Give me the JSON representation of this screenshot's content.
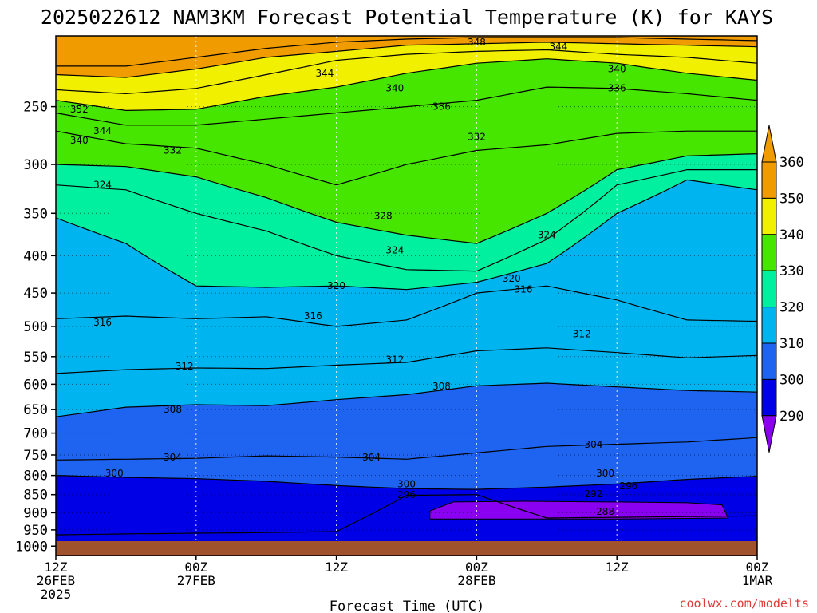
{
  "title": "2025022612 NAM3KM Forecast Potential Temperature (K) for KAYS",
  "credit": "coolwx.com/modelts",
  "chart_data": {
    "type": "heatmap",
    "title": "2025022612 NAM3KM Forecast Potential Temperature (K) for KAYS",
    "xlabel": "Forecast Time (UTC)",
    "ylabel": "",
    "x_range_hours": [
      0,
      60
    ],
    "y_range_hpa": [
      1030,
      200
    ],
    "y_scale": "log-pressure (inverted)",
    "grid": true,
    "y_ticks": [
      250,
      300,
      350,
      400,
      450,
      500,
      550,
      600,
      650,
      700,
      750,
      800,
      850,
      900,
      950,
      1000
    ],
    "x_ticks": [
      {
        "hour": 0,
        "lines": [
          "12Z",
          "26FEB",
          "2025"
        ]
      },
      {
        "hour": 12,
        "lines": [
          "00Z",
          "27FEB"
        ]
      },
      {
        "hour": 24,
        "lines": [
          "12Z"
        ]
      },
      {
        "hour": 36,
        "lines": [
          "00Z",
          "28FEB"
        ]
      },
      {
        "hour": 48,
        "lines": [
          "12Z"
        ]
      },
      {
        "hour": 60,
        "lines": [
          "00Z",
          "1MAR"
        ]
      }
    ],
    "colorbar": {
      "levels": [
        290,
        300,
        310,
        320,
        330,
        340,
        350,
        360
      ],
      "colors": [
        "#8a00f0",
        "#0000e6",
        "#1f64f0",
        "#00b4f0",
        "#00f0a0",
        "#46e600",
        "#f0f000",
        "#f09b00"
      ],
      "extend": "both"
    },
    "series": [
      {
        "name": "296",
        "values": [
          [
            0,
            965
          ],
          [
            6,
            962
          ],
          [
            12,
            960
          ],
          [
            18,
            958
          ],
          [
            24,
            955
          ],
          [
            30,
            852
          ],
          [
            36,
            850
          ],
          [
            42,
            915
          ],
          [
            48,
            913
          ],
          [
            54,
            911
          ],
          [
            60,
            909
          ]
        ]
      },
      {
        "name": "300",
        "values": [
          [
            0,
            800
          ],
          [
            6,
            805
          ],
          [
            12,
            808
          ],
          [
            18,
            815
          ],
          [
            24,
            826
          ],
          [
            30,
            834
          ],
          [
            36,
            836
          ],
          [
            42,
            830
          ],
          [
            48,
            822
          ],
          [
            54,
            810
          ],
          [
            60,
            802
          ]
        ]
      },
      {
        "name": "304",
        "values": [
          [
            0,
            762
          ],
          [
            6,
            760
          ],
          [
            12,
            758
          ],
          [
            18,
            752
          ],
          [
            24,
            755
          ],
          [
            30,
            760
          ],
          [
            36,
            745
          ],
          [
            42,
            730
          ],
          [
            48,
            725
          ],
          [
            54,
            720
          ],
          [
            60,
            710
          ]
        ]
      },
      {
        "name": "308",
        "values": [
          [
            0,
            665
          ],
          [
            6,
            645
          ],
          [
            12,
            640
          ],
          [
            18,
            642
          ],
          [
            24,
            630
          ],
          [
            30,
            620
          ],
          [
            36,
            603
          ],
          [
            42,
            598
          ],
          [
            48,
            605
          ],
          [
            54,
            612
          ],
          [
            60,
            615
          ]
        ]
      },
      {
        "name": "312",
        "values": [
          [
            0,
            580
          ],
          [
            6,
            573
          ],
          [
            12,
            570
          ],
          [
            18,
            571
          ],
          [
            24,
            565
          ],
          [
            30,
            560
          ],
          [
            36,
            540
          ],
          [
            42,
            535
          ],
          [
            48,
            543
          ],
          [
            54,
            552
          ],
          [
            60,
            548
          ]
        ]
      },
      {
        "name": "316",
        "values": [
          [
            0,
            488
          ],
          [
            6,
            484
          ],
          [
            12,
            488
          ],
          [
            18,
            485
          ],
          [
            24,
            500
          ],
          [
            30,
            490
          ],
          [
            36,
            450
          ],
          [
            42,
            440
          ],
          [
            48,
            460
          ],
          [
            54,
            490
          ],
          [
            60,
            492
          ]
        ]
      },
      {
        "name": "320",
        "values": [
          [
            0,
            355
          ],
          [
            6,
            385
          ],
          [
            12,
            440
          ],
          [
            18,
            442
          ],
          [
            24,
            440
          ],
          [
            30,
            445
          ],
          [
            36,
            435
          ],
          [
            42,
            410
          ],
          [
            48,
            350
          ],
          [
            54,
            315
          ],
          [
            60,
            325
          ]
        ]
      },
      {
        "name": "324",
        "values": [
          [
            0,
            320
          ],
          [
            6,
            325
          ],
          [
            12,
            350
          ],
          [
            18,
            370
          ],
          [
            24,
            400
          ],
          [
            30,
            418
          ],
          [
            36,
            420
          ],
          [
            42,
            380
          ],
          [
            48,
            320
          ],
          [
            54,
            305
          ],
          [
            60,
            305
          ]
        ]
      },
      {
        "name": "328",
        "values": [
          [
            0,
            300
          ],
          [
            6,
            302
          ],
          [
            12,
            312
          ],
          [
            18,
            333
          ],
          [
            24,
            360
          ],
          [
            30,
            375
          ],
          [
            36,
            385
          ],
          [
            42,
            350
          ],
          [
            48,
            305
          ],
          [
            54,
            292
          ],
          [
            60,
            290
          ]
        ]
      },
      {
        "name": "332",
        "values": [
          [
            0,
            270
          ],
          [
            6,
            281
          ],
          [
            12,
            285
          ],
          [
            18,
            300
          ],
          [
            24,
            320
          ],
          [
            30,
            300
          ],
          [
            36,
            287
          ],
          [
            42,
            282
          ],
          [
            48,
            272
          ],
          [
            54,
            270
          ],
          [
            60,
            270
          ]
        ]
      },
      {
        "name": "336",
        "values": [
          [
            0,
            255
          ],
          [
            6,
            265
          ],
          [
            12,
            265
          ],
          [
            18,
            260
          ],
          [
            24,
            255
          ],
          [
            30,
            250
          ],
          [
            36,
            245
          ],
          [
            42,
            235
          ],
          [
            48,
            236
          ],
          [
            54,
            240
          ],
          [
            60,
            245
          ]
        ]
      },
      {
        "name": "340",
        "values": [
          [
            0,
            245
          ],
          [
            6,
            253
          ],
          [
            12,
            252
          ],
          [
            18,
            242
          ],
          [
            24,
            235
          ],
          [
            30,
            225
          ],
          [
            36,
            218
          ],
          [
            42,
            215
          ],
          [
            48,
            218
          ],
          [
            54,
            225
          ],
          [
            60,
            230
          ]
        ]
      },
      {
        "name": "344",
        "values": [
          [
            0,
            237
          ],
          [
            6,
            240
          ],
          [
            12,
            236
          ],
          [
            18,
            226
          ],
          [
            24,
            216
          ],
          [
            30,
            212
          ],
          [
            36,
            210
          ],
          [
            42,
            209
          ],
          [
            48,
            212
          ],
          [
            54,
            214
          ],
          [
            60,
            218
          ]
        ]
      },
      {
        "name": "348",
        "values": [
          [
            0,
            226
          ],
          [
            6,
            228
          ],
          [
            12,
            222
          ],
          [
            18,
            214
          ],
          [
            24,
            210
          ],
          [
            30,
            206
          ],
          [
            36,
            205
          ],
          [
            42,
            204
          ],
          [
            48,
            205
          ],
          [
            54,
            206
          ],
          [
            60,
            207
          ]
        ]
      },
      {
        "name": "352",
        "values": [
          [
            0,
            220
          ],
          [
            6,
            220
          ],
          [
            12,
            214
          ],
          [
            18,
            208
          ],
          [
            24,
            204
          ],
          [
            30,
            202
          ],
          [
            36,
            201
          ],
          [
            42,
            201
          ],
          [
            48,
            201
          ],
          [
            54,
            202
          ],
          [
            60,
            203
          ]
        ]
      }
    ],
    "contour_labels": [
      {
        "text": "348",
        "x": 36.0,
        "y": 204
      },
      {
        "text": "344",
        "x": 43.0,
        "y": 207
      },
      {
        "text": "344",
        "x": 23.0,
        "y": 225
      },
      {
        "text": "340",
        "x": 48.0,
        "y": 222
      },
      {
        "text": "340",
        "x": 29.0,
        "y": 236
      },
      {
        "text": "336",
        "x": 48.0,
        "y": 236
      },
      {
        "text": "352",
        "x": 2.0,
        "y": 252
      },
      {
        "text": "336",
        "x": 33.0,
        "y": 250
      },
      {
        "text": "344",
        "x": 4.0,
        "y": 270
      },
      {
        "text": "332",
        "x": 36.0,
        "y": 275
      },
      {
        "text": "340",
        "x": 2.0,
        "y": 278
      },
      {
        "text": "332",
        "x": 10.0,
        "y": 287
      },
      {
        "text": "324",
        "x": 4.0,
        "y": 320
      },
      {
        "text": "328",
        "x": 28.0,
        "y": 353
      },
      {
        "text": "324",
        "x": 42.0,
        "y": 375
      },
      {
        "text": "324",
        "x": 29.0,
        "y": 393
      },
      {
        "text": "320",
        "x": 39.0,
        "y": 430
      },
      {
        "text": "320",
        "x": 24.0,
        "y": 440
      },
      {
        "text": "316",
        "x": 40.0,
        "y": 445
      },
      {
        "text": "316",
        "x": 22.0,
        "y": 484
      },
      {
        "text": "316",
        "x": 4.0,
        "y": 494
      },
      {
        "text": "312",
        "x": 45.0,
        "y": 512
      },
      {
        "text": "312",
        "x": 29.0,
        "y": 555
      },
      {
        "text": "312",
        "x": 11.0,
        "y": 567
      },
      {
        "text": "308",
        "x": 33.0,
        "y": 604
      },
      {
        "text": "308",
        "x": 10.0,
        "y": 650
      },
      {
        "text": "304",
        "x": 46.0,
        "y": 726
      },
      {
        "text": "304",
        "x": 10.0,
        "y": 756
      },
      {
        "text": "304",
        "x": 27.0,
        "y": 756
      },
      {
        "text": "300",
        "x": 5.0,
        "y": 795
      },
      {
        "text": "300",
        "x": 47.0,
        "y": 795
      },
      {
        "text": "300",
        "x": 30.0,
        "y": 822
      },
      {
        "text": "296",
        "x": 49.0,
        "y": 827
      },
      {
        "text": "296",
        "x": 30.0,
        "y": 851
      },
      {
        "text": "292",
        "x": 46.0,
        "y": 849
      },
      {
        "text": "288",
        "x": 47.0,
        "y": 897
      }
    ]
  }
}
